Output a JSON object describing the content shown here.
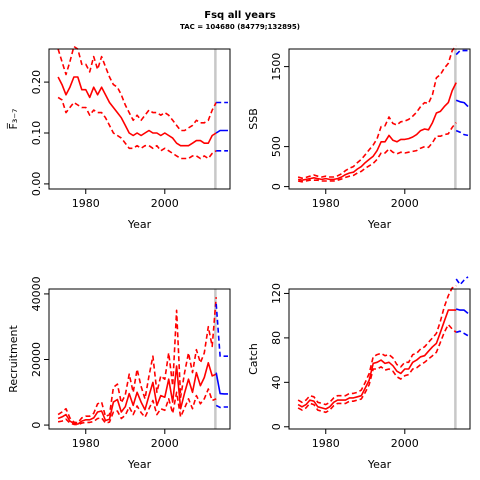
{
  "title": "Fsq all years",
  "subtitle": "TAC = 104680 (84779;132895)",
  "colors": {
    "hist": "#ff0000",
    "fore": "#0000ff",
    "vline": "#c8c8c8"
  },
  "chart_data": [
    {
      "type": "line",
      "id": "F",
      "ylabel": "F̅₃₋₇",
      "xlabel": "Year",
      "xlim": [
        1970.7,
        2016.5
      ],
      "ylim": [
        -0.01,
        0.265
      ],
      "yticks": [
        0,
        0.1,
        0.2
      ],
      "ytick_labels": [
        "0.00",
        "0.10",
        "0.20"
      ],
      "xticks": [
        1980,
        2000
      ],
      "xtick_labels": [
        "1980",
        "2000"
      ],
      "vline": 2012.8,
      "history": {
        "x": [
          1973,
          1974,
          1975,
          1976,
          1977,
          1978,
          1979,
          1980,
          1981,
          1982,
          1983,
          1984,
          1985,
          1986,
          1987,
          1988,
          1989,
          1990,
          1991,
          1992,
          1993,
          1994,
          1995,
          1996,
          1997,
          1998,
          1999,
          2000,
          2001,
          2002,
          2003,
          2004,
          2005,
          2006,
          2007,
          2008,
          2009,
          2010,
          2011,
          2012,
          2013
        ],
        "median": [
          0.21,
          0.195,
          0.175,
          0.19,
          0.21,
          0.21,
          0.185,
          0.185,
          0.17,
          0.19,
          0.175,
          0.19,
          0.175,
          0.16,
          0.15,
          0.14,
          0.13,
          0.115,
          0.1,
          0.095,
          0.1,
          0.095,
          0.1,
          0.105,
          0.1,
          0.1,
          0.095,
          0.1,
          0.095,
          0.09,
          0.08,
          0.075,
          0.075,
          0.075,
          0.08,
          0.085,
          0.085,
          0.08,
          0.08,
          0.095,
          0.1
        ],
        "lower": [
          0.17,
          0.165,
          0.14,
          0.15,
          0.16,
          0.155,
          0.15,
          0.15,
          0.135,
          0.145,
          0.14,
          0.14,
          0.13,
          0.115,
          0.1,
          0.095,
          0.09,
          0.08,
          0.07,
          0.07,
          0.075,
          0.07,
          0.075,
          0.075,
          0.07,
          0.075,
          0.065,
          0.07,
          0.065,
          0.06,
          0.055,
          0.05,
          0.05,
          0.05,
          0.055,
          0.055,
          0.05,
          0.055,
          0.05,
          0.06,
          0.065
        ],
        "upper": [
          0.265,
          0.24,
          0.215,
          0.24,
          0.27,
          0.265,
          0.235,
          0.235,
          0.22,
          0.25,
          0.225,
          0.25,
          0.23,
          0.21,
          0.195,
          0.19,
          0.175,
          0.155,
          0.14,
          0.125,
          0.135,
          0.125,
          0.135,
          0.145,
          0.14,
          0.14,
          0.135,
          0.14,
          0.135,
          0.125,
          0.115,
          0.105,
          0.105,
          0.11,
          0.115,
          0.125,
          0.12,
          0.12,
          0.125,
          0.145,
          0.16
        ]
      },
      "forecast": {
        "x": [
          2013,
          2014,
          2015,
          2016
        ],
        "median": [
          0.1,
          0.105,
          0.105,
          0.105
        ],
        "lower": [
          0.065,
          0.065,
          0.065,
          0.065
        ],
        "upper": [
          0.16,
          0.16,
          0.16,
          0.16
        ]
      }
    },
    {
      "type": "line",
      "id": "SSB",
      "ylabel": "SSB",
      "xlabel": "Year",
      "xlim": [
        1970.7,
        2016.5
      ],
      "ylim": [
        -30,
        1720
      ],
      "yticks": [
        0,
        500,
        1500
      ],
      "ytick_labels": [
        "0",
        "500",
        "1500"
      ],
      "xticks": [
        1980,
        2000
      ],
      "xtick_labels": [
        "1980",
        "2000"
      ],
      "vline": 2012.8,
      "history": {
        "x": [
          1973,
          1974,
          1975,
          1976,
          1977,
          1978,
          1979,
          1980,
          1981,
          1982,
          1983,
          1984,
          1985,
          1986,
          1987,
          1988,
          1989,
          1990,
          1991,
          1992,
          1993,
          1994,
          1995,
          1996,
          1997,
          1998,
          1999,
          2000,
          2001,
          2002,
          2003,
          2004,
          2005,
          2006,
          2007,
          2008,
          2009,
          2010,
          2011,
          2012,
          2013
        ],
        "median": [
          90,
          80,
          90,
          100,
          110,
          100,
          90,
          100,
          90,
          90,
          100,
          120,
          150,
          170,
          180,
          220,
          250,
          300,
          340,
          380,
          450,
          560,
          560,
          640,
          580,
          560,
          590,
          590,
          600,
          620,
          650,
          700,
          720,
          710,
          800,
          920,
          940,
          1000,
          1050,
          1200,
          1300
        ],
        "lower": [
          70,
          60,
          70,
          80,
          80,
          80,
          70,
          70,
          70,
          70,
          80,
          95,
          115,
          130,
          140,
          170,
          190,
          230,
          260,
          290,
          340,
          420,
          420,
          470,
          430,
          410,
          430,
          420,
          430,
          440,
          450,
          480,
          500,
          490,
          550,
          630,
          630,
          650,
          660,
          740,
          800
        ],
        "upper": [
          120,
          105,
          115,
          130,
          145,
          130,
          120,
          130,
          120,
          120,
          135,
          160,
          200,
          230,
          250,
          300,
          340,
          400,
          460,
          520,
          600,
          750,
          760,
          870,
          790,
          770,
          810,
          820,
          840,
          880,
          930,
          1000,
          1050,
          1040,
          1150,
          1360,
          1400,
          1480,
          1540,
          1700,
          1760
        ]
      },
      "forecast": {
        "x": [
          2013,
          2014,
          2015,
          2016
        ],
        "median": [
          1080,
          1060,
          1050,
          1000
        ],
        "lower": [
          700,
          680,
          650,
          640
        ],
        "upper": [
          1650,
          1700,
          1700,
          1700
        ]
      }
    },
    {
      "type": "line",
      "id": "Recruitment",
      "ylabel": "Recruitment",
      "xlabel": "Year",
      "xlim": [
        1970.7,
        2016.5
      ],
      "ylim": [
        -1200,
        41500
      ],
      "yticks": [
        0,
        20000,
        40000
      ],
      "ytick_labels": [
        "0",
        "20000",
        "40000"
      ],
      "xticks": [
        1980,
        2000
      ],
      "xtick_labels": [
        "1980",
        "2000"
      ],
      "vline": 2012.8,
      "history": {
        "x": [
          1973,
          1974,
          1975,
          1976,
          1977,
          1978,
          1979,
          1980,
          1981,
          1982,
          1983,
          1984,
          1985,
          1986,
          1987,
          1988,
          1989,
          1990,
          1991,
          1992,
          1993,
          1994,
          1995,
          1996,
          1997,
          1998,
          1999,
          2000,
          2001,
          2002,
          2003,
          2004,
          2005,
          2006,
          2007,
          2008,
          2009,
          2010,
          2011,
          2012,
          2013
        ],
        "median": [
          2000,
          2500,
          3200,
          1200,
          500,
          300,
          1200,
          1600,
          1600,
          2200,
          4000,
          4300,
          1400,
          1800,
          7000,
          7800,
          4000,
          5600,
          9600,
          6000,
          10000,
          7000,
          4700,
          9000,
          13000,
          6000,
          9000,
          8500,
          14000,
          7000,
          18000,
          5000,
          9800,
          14000,
          10000,
          16000,
          12000,
          14500,
          19000,
          15000,
          15500
        ],
        "lower": [
          1000,
          1200,
          1800,
          600,
          200,
          100,
          600,
          800,
          800,
          1100,
          2000,
          2200,
          600,
          900,
          4000,
          4300,
          2000,
          3000,
          5500,
          3200,
          5800,
          3800,
          2400,
          5000,
          7500,
          3200,
          5000,
          4500,
          8000,
          3600,
          10000,
          2500,
          5200,
          8000,
          5000,
          9000,
          6500,
          8000,
          11000,
          7500,
          8000
        ],
        "upper": [
          3200,
          4000,
          5000,
          2200,
          900,
          700,
          2200,
          2700,
          2700,
          3600,
          6500,
          7000,
          2600,
          3200,
          11500,
          12500,
          6800,
          9200,
          15500,
          10000,
          17000,
          11800,
          8000,
          15000,
          21000,
          10000,
          15000,
          14000,
          22000,
          12000,
          35000,
          8500,
          16000,
          22000,
          16000,
          23000,
          19000,
          22000,
          30000,
          24000,
          39000
        ]
      },
      "forecast": {
        "x": [
          2013,
          2014,
          2015,
          2016
        ],
        "median": [
          16000,
          9600,
          9500,
          9500
        ],
        "lower": [
          6000,
          5400,
          5500,
          5500
        ],
        "upper": [
          37000,
          21000,
          21000,
          21000
        ]
      }
    },
    {
      "type": "line",
      "id": "Catch",
      "ylabel": "Catch",
      "xlabel": "Year",
      "xlim": [
        1970.7,
        2016.5
      ],
      "ylim": [
        -2,
        124
      ],
      "yticks": [
        0,
        40,
        80,
        120
      ],
      "ytick_labels": [
        "0",
        "40",
        "80",
        "120"
      ],
      "xticks": [
        1980,
        2000
      ],
      "xtick_labels": [
        "1980",
        "2000"
      ],
      "vline": 2012.8,
      "history": {
        "x": [
          1973,
          1974,
          1975,
          1976,
          1977,
          1978,
          1979,
          1980,
          1981,
          1982,
          1983,
          1984,
          1985,
          1986,
          1987,
          1988,
          1989,
          1990,
          1991,
          1992,
          1993,
          1994,
          1995,
          1996,
          1997,
          1998,
          1999,
          2000,
          2001,
          2002,
          2003,
          2004,
          2005,
          2006,
          2007,
          2008,
          2009,
          2010,
          2011,
          2012,
          2013
        ],
        "median": [
          20,
          18,
          20,
          24,
          23,
          18,
          17,
          16,
          18,
          22,
          24,
          24,
          24,
          26,
          26,
          27,
          28,
          35,
          42,
          57,
          58,
          60,
          57,
          58,
          55,
          50,
          48,
          52,
          52,
          58,
          60,
          63,
          64,
          68,
          72,
          75,
          85,
          95,
          105,
          105,
          105
        ],
        "lower": [
          17,
          15,
          17,
          21,
          20,
          15,
          14,
          13,
          15,
          19,
          21,
          21,
          21,
          23,
          23,
          24,
          25,
          31,
          38,
          52,
          52,
          54,
          51,
          52,
          50,
          45,
          43,
          46,
          47,
          52,
          53,
          56,
          58,
          61,
          64,
          67,
          76,
          85,
          92,
          88,
          85
        ],
        "upper": [
          24,
          22,
          24,
          28,
          27,
          22,
          21,
          20,
          22,
          26,
          28,
          28,
          28,
          30,
          30,
          31,
          33,
          40,
          48,
          63,
          65,
          66,
          64,
          65,
          62,
          56,
          54,
          58,
          58,
          65,
          66,
          70,
          72,
          76,
          80,
          84,
          95,
          108,
          118,
          125,
          127
        ]
      },
      "forecast": {
        "x": [
          2013,
          2014,
          2015,
          2016
        ],
        "median": [
          106,
          105,
          105,
          102
        ],
        "lower": [
          85,
          86,
          84,
          82
        ],
        "upper": [
          133,
          128,
          132,
          135
        ]
      }
    }
  ]
}
